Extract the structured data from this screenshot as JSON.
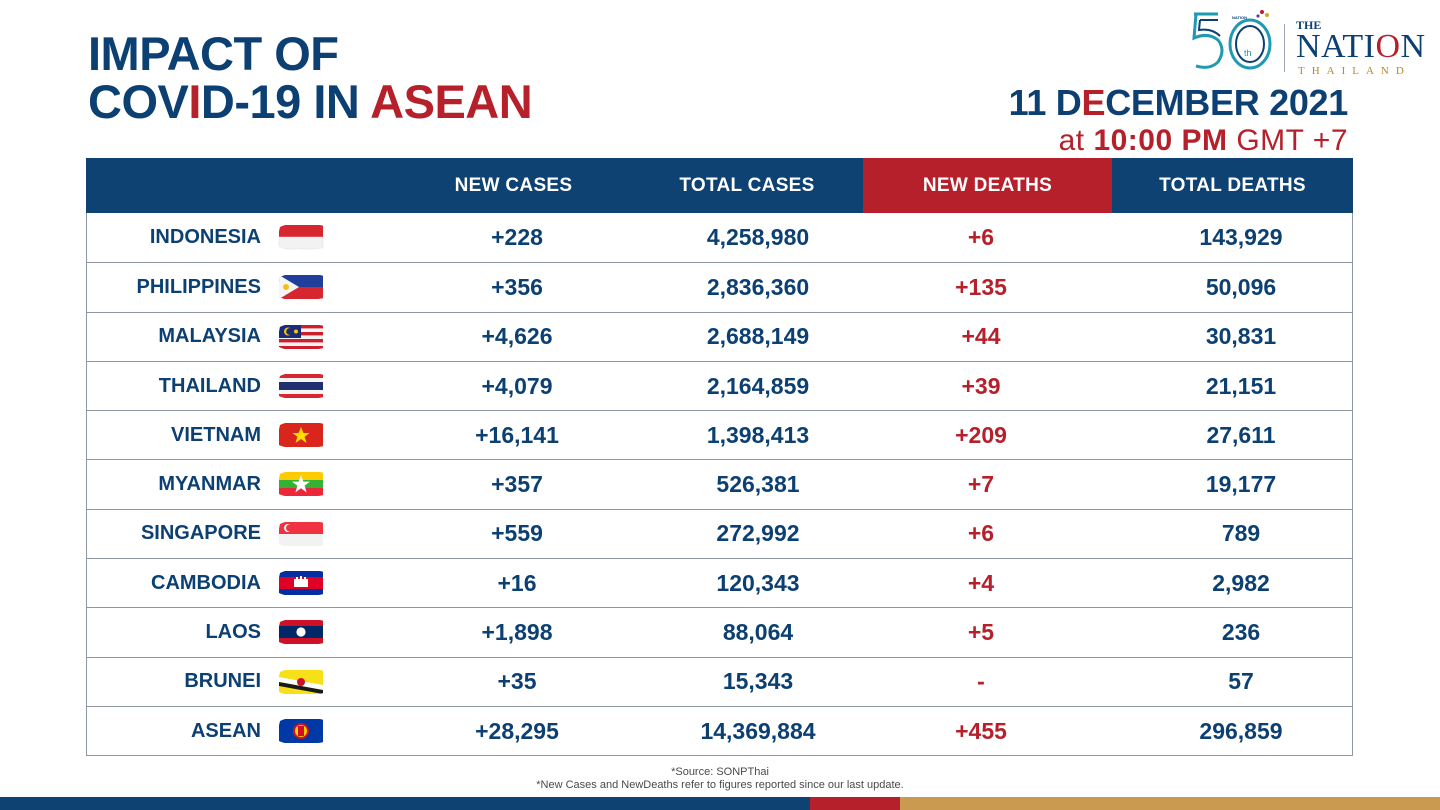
{
  "title": {
    "line1": "IMPACT OF",
    "line2_a": "COV",
    "line2_b": "I",
    "line2_c": "D-19 IN ",
    "line2_d": "ASEAN"
  },
  "logo": {
    "the": "THE",
    "nation_a": "NATI",
    "nation_b": "O",
    "nation_c": "N",
    "thailand": "THAILAND",
    "anniversary": "50",
    "anniversary_suffix": "th",
    "small": "NATION"
  },
  "date": {
    "main_a": "11 D",
    "main_b": "E",
    "main_c": "CEMBER 2021",
    "sub_a": "at ",
    "sub_b": "10:00 PM",
    "sub_c": " GMT +7"
  },
  "columns": [
    "NEW CASES",
    "TOTAL CASES",
    "NEW DEATHS",
    "TOTAL DEATHS"
  ],
  "rows": [
    {
      "country": "INDONESIA",
      "flag": "indonesia-flag",
      "new_cases": "+228",
      "total_cases": "4,258,980",
      "new_deaths": "+6",
      "total_deaths": "143,929"
    },
    {
      "country": "PHILIPPINES",
      "flag": "philippines-flag",
      "new_cases": "+356",
      "total_cases": "2,836,360",
      "new_deaths": "+135",
      "total_deaths": "50,096"
    },
    {
      "country": "MALAYSIA",
      "flag": "malaysia-flag",
      "new_cases": "+4,626",
      "total_cases": "2,688,149",
      "new_deaths": "+44",
      "total_deaths": "30,831"
    },
    {
      "country": "THAILAND",
      "flag": "thailand-flag",
      "new_cases": "+4,079",
      "total_cases": "2,164,859",
      "new_deaths": "+39",
      "total_deaths": "21,151"
    },
    {
      "country": "VIETNAM",
      "flag": "vietnam-flag",
      "new_cases": "+16,141",
      "total_cases": "1,398,413",
      "new_deaths": "+209",
      "total_deaths": "27,611"
    },
    {
      "country": "MYANMAR",
      "flag": "myanmar-flag",
      "new_cases": "+357",
      "total_cases": "526,381",
      "new_deaths": "+7",
      "total_deaths": "19,177"
    },
    {
      "country": "SINGAPORE",
      "flag": "singapore-flag",
      "new_cases": "+559",
      "total_cases": "272,992",
      "new_deaths": "+6",
      "total_deaths": "789"
    },
    {
      "country": "CAMBODIA",
      "flag": "cambodia-flag",
      "new_cases": "+16",
      "total_cases": "120,343",
      "new_deaths": "+4",
      "total_deaths": "2,982"
    },
    {
      "country": "LAOS",
      "flag": "laos-flag",
      "new_cases": "+1,898",
      "total_cases": "88,064",
      "new_deaths": "+5",
      "total_deaths": "236"
    },
    {
      "country": "BRUNEI",
      "flag": "brunei-flag",
      "new_cases": "+35",
      "total_cases": "15,343",
      "new_deaths": "-",
      "total_deaths": "57"
    },
    {
      "country": "ASEAN",
      "flag": "asean-flag",
      "new_cases": "+28,295",
      "total_cases": "14,369,884",
      "new_deaths": "+455",
      "total_deaths": "296,859"
    }
  ],
  "footnotes": {
    "source": "*Source: SONPThai",
    "note": "*New Cases and NewDeaths refer to figures reported since our last update."
  },
  "colors": {
    "navy": "#0e4273",
    "red": "#b5202b",
    "gold": "#c99a50"
  }
}
